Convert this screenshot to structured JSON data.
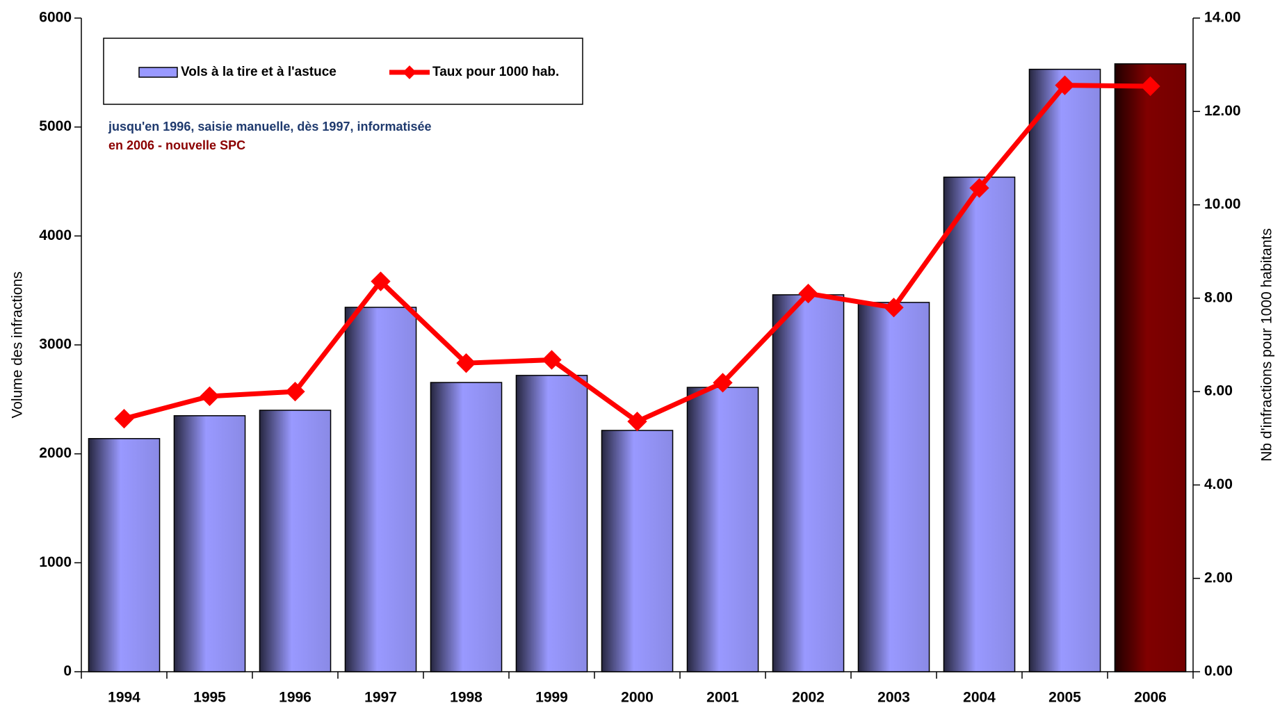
{
  "chart_data": {
    "type": "bar_line",
    "categories": [
      "1994",
      "1995",
      "1996",
      "1997",
      "1998",
      "1999",
      "2000",
      "2001",
      "2002",
      "2003",
      "2004",
      "2005",
      "2006"
    ],
    "series": [
      {
        "name": "Vols à la tire et à l'astuce",
        "type": "bar",
        "color": "#9999ff",
        "colors": [
          "#9999ff",
          "#9999ff",
          "#9999ff",
          "#9999ff",
          "#9999ff",
          "#9999ff",
          "#9999ff",
          "#9999ff",
          "#9999ff",
          "#9999ff",
          "#9999ff",
          "#9999ff",
          "#800000"
        ],
        "values": [
          2140,
          2350,
          2400,
          3345,
          2655,
          2720,
          2215,
          2610,
          3460,
          3390,
          4540,
          5530,
          5580
        ]
      },
      {
        "name": "Taux pour 1000 hab.",
        "type": "line",
        "axis": "y2",
        "color": "#ff0000",
        "values": [
          5.42,
          5.9,
          6.0,
          8.36,
          6.61,
          6.68,
          5.36,
          6.19,
          8.1,
          7.8,
          10.36,
          12.56,
          12.54
        ]
      }
    ],
    "ylabel": "Volume des infractions",
    "y2label": "Nb d'infractions pour 1000 habitants",
    "annotations": [
      {
        "text": "jusqu'en 1996, saisie manuelle, dès 1997, informatisée",
        "color": "#1f3a6e"
      },
      {
        "text": "en 2006 - nouvelle SPC",
        "color": "#8b0000"
      }
    ],
    "ylim": [
      0,
      6000
    ],
    "yticks": [
      0,
      1000,
      2000,
      3000,
      4000,
      5000,
      6000
    ],
    "y2lim": [
      0,
      14
    ],
    "y2ticks": [
      {
        "value": 0,
        "label": "0.00"
      },
      {
        "value": 2,
        "label": "2.00"
      },
      {
        "value": 4,
        "label": "4.00"
      },
      {
        "value": 6,
        "label": "6.00"
      },
      {
        "value": 8,
        "label": "8.00"
      },
      {
        "value": 10,
        "label": "10.00"
      },
      {
        "value": 12,
        "label": "12.00"
      },
      {
        "value": 14,
        "label": "14.00"
      }
    ],
    "legend": "top-left"
  }
}
